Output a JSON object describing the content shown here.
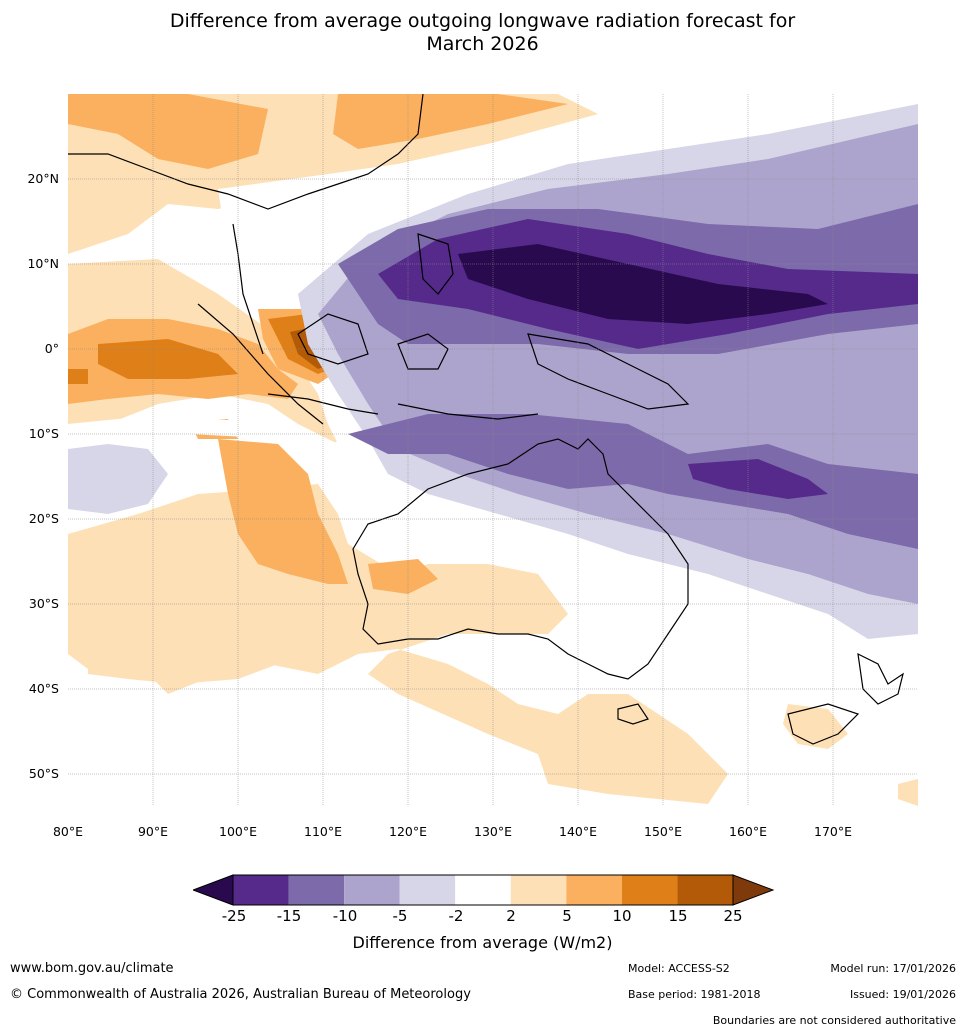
{
  "title_line1": "Difference from average outgoing longwave radiation forecast for",
  "title_line2": "March 2026",
  "latitude_labels": [
    "20°N",
    "10°N",
    "0°",
    "10°S",
    "20°S",
    "30°S",
    "40°S",
    "50°S"
  ],
  "longitude_labels": [
    "80°E",
    "90°E",
    "100°E",
    "110°E",
    "120°E",
    "130°E",
    "140°E",
    "150°E",
    "160°E",
    "170°E"
  ],
  "legend": {
    "ticks": [
      "-25",
      "-15",
      "-10",
      "-5",
      "-2",
      "2",
      "5",
      "10",
      "15",
      "25"
    ],
    "colors": [
      "#2a0a4f",
      "#552a8a",
      "#7d6aaa",
      "#ada4cd",
      "#d7d6e8",
      "#ffffff",
      "#fde0b5",
      "#fbb05f",
      "#df7f17",
      "#b35a08",
      "#7f3a0b"
    ],
    "label": "Difference from average (W/m2)"
  },
  "footer": {
    "website": "www.bom.gov.au/climate",
    "copyright": "© Commonwealth of Australia 2026, Australian Bureau of Meteorology",
    "model": "Model: ACCESS-S2",
    "base_period": "Base period: 1981-2018",
    "model_run": "Model run: 17/01/2026",
    "issued": "Issued: 19/01/2026",
    "disclaimer": "Boundaries are not considered authoritative"
  }
}
